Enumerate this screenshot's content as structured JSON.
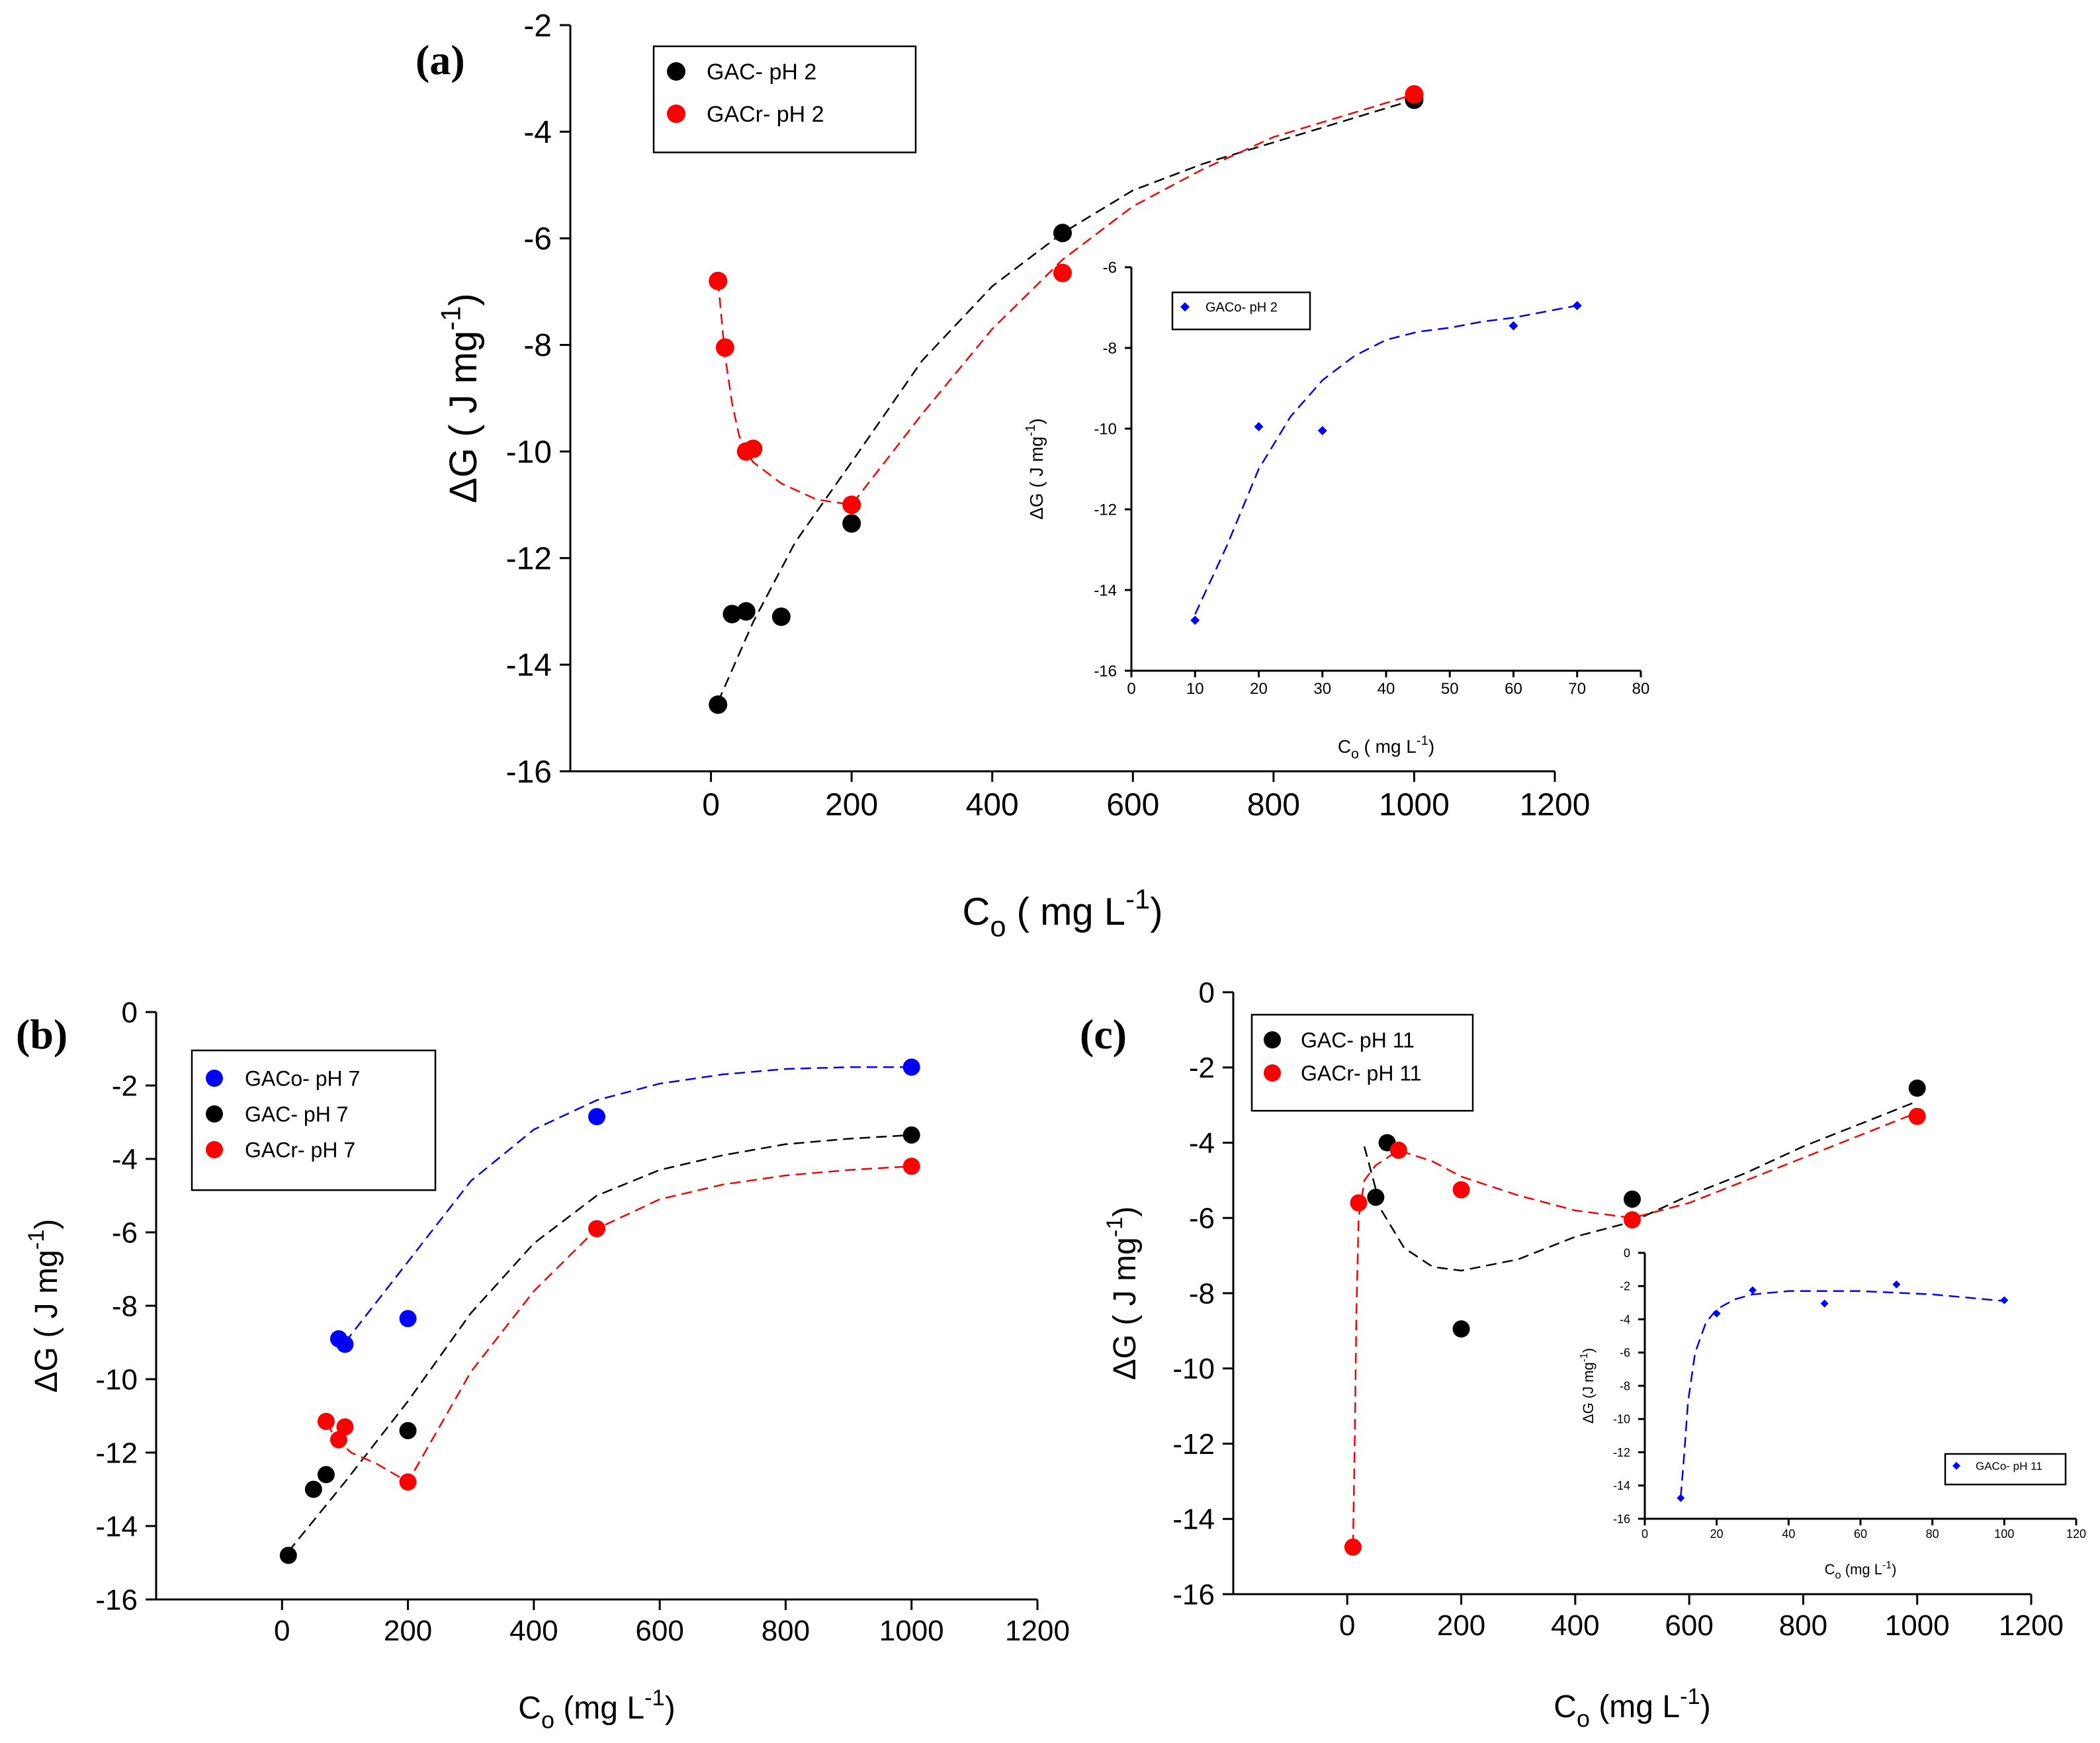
{
  "figure": {
    "colors": {
      "black": "#000000",
      "red": "#ff0000",
      "blue": "#0000ff"
    }
  },
  "chart_data": [
    {
      "id": "a",
      "panel_label": "(a)",
      "type": "scatter",
      "xlabel": "Co ( mg L-1)",
      "xlabel_parts": {
        "main": "C",
        "sub": "o",
        "units": " ( mg L",
        "sup": "-1",
        "close": ")"
      },
      "ylabel": "ΔG ( J mg-1)",
      "ylabel_parts": {
        "main": "ΔG ( J mg",
        "sup": "-1",
        "close": ")"
      },
      "xlim": [
        -200,
        1200
      ],
      "ylim": [
        -16,
        -2
      ],
      "xticks": [
        0,
        200,
        400,
        600,
        800,
        1000,
        1200
      ],
      "yticks": [
        -16,
        -14,
        -12,
        -10,
        -8,
        -6,
        -4,
        -2
      ],
      "legend_position": "top-left",
      "legend": [
        "GAC- pH 2",
        "GACr- pH 2"
      ],
      "series": [
        {
          "name": "GAC- pH 2",
          "color": "#000000",
          "marker": "circle",
          "x": [
            10,
            30,
            50,
            100,
            200,
            500,
            1000
          ],
          "y": [
            -14.75,
            -13.05,
            -13.0,
            -13.1,
            -11.35,
            -5.9,
            -3.4
          ],
          "fit_x": [
            10,
            60,
            120,
            200,
            300,
            400,
            500,
            600,
            700,
            800,
            900,
            1000
          ],
          "fit_y": [
            -14.7,
            -13.2,
            -11.7,
            -10.2,
            -8.3,
            -6.9,
            -5.9,
            -5.1,
            -4.6,
            -4.2,
            -3.8,
            -3.4
          ]
        },
        {
          "name": "GACr- pH 2",
          "color": "#ff0000",
          "marker": "circle",
          "x": [
            10,
            20,
            50,
            60,
            200,
            500,
            1000
          ],
          "y": [
            -6.8,
            -8.05,
            -10.0,
            -9.95,
            -11.0,
            -6.65,
            -3.3
          ],
          "fit_x": [
            10,
            15,
            20,
            30,
            40,
            50,
            60,
            100,
            150,
            200,
            300,
            400,
            500,
            600,
            700,
            800,
            900,
            1000
          ],
          "fit_y": [
            -6.8,
            -7.5,
            -8.2,
            -9.1,
            -9.7,
            -10.0,
            -10.2,
            -10.6,
            -10.9,
            -11.0,
            -9.3,
            -7.7,
            -6.4,
            -5.4,
            -4.7,
            -4.1,
            -3.7,
            -3.3
          ]
        }
      ]
    },
    {
      "id": "a_inset",
      "type": "scatter",
      "xlabel": "Co ( mg L-1)",
      "xlabel_parts": {
        "main": "C",
        "sub": "o",
        "units": " ( mg L",
        "sup": "-1",
        "close": ")"
      },
      "ylabel": "ΔG ( J mg-1)",
      "ylabel_parts": {
        "main": "ΔG ( J mg",
        "sup": "-1",
        "close": ")"
      },
      "xlim": [
        0,
        80
      ],
      "ylim": [
        -16,
        -6
      ],
      "xticks": [
        0,
        10,
        20,
        30,
        40,
        50,
        60,
        70,
        80
      ],
      "yticks": [
        -16,
        -14,
        -12,
        -10,
        -8,
        -6
      ],
      "legend_position": "top-left",
      "legend": [
        "GACo- pH 2"
      ],
      "series": [
        {
          "name": "GACo- pH 2",
          "color": "#0000ff",
          "marker": "diamond",
          "x": [
            10,
            20,
            30,
            60,
            70
          ],
          "y": [
            -14.75,
            -9.95,
            -10.05,
            -7.45,
            -6.95
          ],
          "fit_x": [
            10,
            15,
            20,
            25,
            30,
            35,
            40,
            45,
            50,
            55,
            60,
            65,
            70
          ],
          "fit_y": [
            -14.6,
            -12.9,
            -11.0,
            -9.7,
            -8.8,
            -8.2,
            -7.8,
            -7.6,
            -7.5,
            -7.35,
            -7.25,
            -7.1,
            -6.95
          ]
        }
      ]
    },
    {
      "id": "b",
      "panel_label": "(b)",
      "type": "scatter",
      "xlabel": "Co (mg L-1)",
      "xlabel_parts": {
        "main": "C",
        "sub": "o",
        "units": " (mg L",
        "sup": "-1",
        "close": ")"
      },
      "ylabel": "ΔG ( J mg-1)",
      "ylabel_parts": {
        "main": "ΔG ( J mg",
        "sup": "-1",
        "close": ")"
      },
      "xlim": [
        -200,
        1200
      ],
      "ylim": [
        -16,
        0
      ],
      "xticks": [
        0,
        200,
        400,
        600,
        800,
        1000,
        1200
      ],
      "yticks": [
        -16,
        -14,
        -12,
        -10,
        -8,
        -6,
        -4,
        -2,
        0
      ],
      "legend_position": "top-left",
      "legend": [
        "GACo- pH 7",
        "GAC- pH 7",
        "GACr- pH 7"
      ],
      "series": [
        {
          "name": "GACo- pH 7",
          "color": "#0000ff",
          "marker": "circle",
          "x": [
            90,
            100,
            200,
            500,
            1000
          ],
          "y": [
            -8.9,
            -9.05,
            -8.35,
            -2.85,
            -1.5
          ],
          "fit_x": [
            100,
            200,
            300,
            400,
            500,
            600,
            700,
            800,
            900,
            1000
          ],
          "fit_y": [
            -9.0,
            -6.8,
            -4.6,
            -3.2,
            -2.4,
            -1.95,
            -1.7,
            -1.55,
            -1.5,
            -1.5
          ]
        },
        {
          "name": "GAC- pH 7",
          "color": "#000000",
          "marker": "circle",
          "x": [
            10,
            50,
            70,
            200,
            1000
          ],
          "y": [
            -14.8,
            -13.0,
            -12.6,
            -11.4,
            -3.35
          ],
          "fit_x": [
            10,
            100,
            200,
            300,
            400,
            500,
            600,
            700,
            800,
            900,
            1000
          ],
          "fit_y": [
            -14.7,
            -12.8,
            -10.6,
            -8.2,
            -6.3,
            -5.0,
            -4.3,
            -3.9,
            -3.6,
            -3.45,
            -3.35
          ]
        },
        {
          "name": "GACr- pH 7",
          "color": "#ff0000",
          "marker": "circle",
          "x": [
            70,
            90,
            100,
            200,
            500,
            1000
          ],
          "y": [
            -11.15,
            -11.65,
            -11.3,
            -12.8,
            -5.9,
            -4.2
          ],
          "fit_x": [
            70,
            90,
            110,
            150,
            200,
            300,
            400,
            500,
            600,
            700,
            800,
            900,
            1000
          ],
          "fit_y": [
            -11.2,
            -11.7,
            -12.0,
            -12.3,
            -12.8,
            -9.8,
            -7.6,
            -5.9,
            -5.1,
            -4.7,
            -4.45,
            -4.3,
            -4.2
          ]
        }
      ]
    },
    {
      "id": "c",
      "panel_label": "(c)",
      "type": "scatter",
      "xlabel": "Co (mg L-1)",
      "xlabel_parts": {
        "main": "C",
        "sub": "o",
        "units": " (mg L",
        "sup": "-1",
        "close": ")"
      },
      "ylabel": "ΔG ( J mg-1)",
      "ylabel_parts": {
        "main": "ΔG ( J mg",
        "sup": "-1",
        "close": ")"
      },
      "xlim": [
        -200,
        1200
      ],
      "ylim": [
        -16,
        0
      ],
      "xticks": [
        0,
        200,
        400,
        600,
        800,
        1000,
        1200
      ],
      "yticks": [
        -16,
        -14,
        -12,
        -10,
        -8,
        -6,
        -4,
        -2,
        0
      ],
      "legend_position": "top-left",
      "legend": [
        "GAC- pH 11",
        "GACr- pH 11"
      ],
      "series": [
        {
          "name": "GAC- pH 11",
          "color": "#000000",
          "marker": "circle",
          "x": [
            50,
            70,
            200,
            500,
            1000
          ],
          "y": [
            -5.45,
            -4.0,
            -8.95,
            -5.5,
            -2.55
          ],
          "fit_x": [
            30,
            60,
            100,
            150,
            200,
            300,
            400,
            500,
            600,
            700,
            800,
            900,
            1000
          ],
          "fit_y": [
            -4.1,
            -5.8,
            -6.8,
            -7.3,
            -7.4,
            -7.1,
            -6.5,
            -6.1,
            -5.4,
            -4.8,
            -4.1,
            -3.5,
            -2.9
          ]
        },
        {
          "name": "GACr- pH 11",
          "color": "#ff0000",
          "marker": "circle",
          "x": [
            10,
            20,
            90,
            200,
            500,
            1000
          ],
          "y": [
            -14.75,
            -5.6,
            -4.2,
            -5.25,
            -6.05,
            -3.3
          ],
          "fit_x": [
            10,
            13,
            16,
            20,
            30,
            50,
            90,
            150,
            200,
            300,
            400,
            500,
            600,
            700,
            800,
            900,
            1000
          ],
          "fit_y": [
            -14.7,
            -12.0,
            -8.5,
            -6.0,
            -5.0,
            -4.6,
            -4.2,
            -4.5,
            -4.9,
            -5.4,
            -5.8,
            -6.0,
            -5.6,
            -5.0,
            -4.4,
            -3.8,
            -3.2
          ]
        }
      ]
    },
    {
      "id": "c_inset",
      "type": "scatter",
      "xlabel": "Co (mg L-1)",
      "xlabel_parts": {
        "main": "C",
        "sub": "o",
        "units": " (mg L",
        "sup": "-1",
        "close": ")"
      },
      "ylabel": "ΔG (J mg-1)",
      "ylabel_parts": {
        "main": "ΔG (J mg",
        "sup": "-1",
        "close": ")"
      },
      "xlim": [
        0,
        120
      ],
      "ylim": [
        -16,
        0
      ],
      "xticks": [
        0,
        20,
        40,
        60,
        80,
        100,
        120
      ],
      "yticks": [
        -16,
        -14,
        -12,
        -10,
        -8,
        -6,
        -4,
        -2,
        0
      ],
      "legend_position": "bottom-right",
      "legend": [
        "GACo- pH 11"
      ],
      "series": [
        {
          "name": "GACo- pH 11",
          "color": "#0000ff",
          "marker": "diamond",
          "x": [
            10,
            20,
            30,
            50,
            70,
            100
          ],
          "y": [
            -14.75,
            -3.65,
            -2.25,
            -3.05,
            -1.9,
            -2.85
          ],
          "fit_x": [
            10,
            11,
            12,
            14,
            17,
            20,
            25,
            30,
            40,
            50,
            60,
            70,
            80,
            90,
            100
          ],
          "fit_y": [
            -14.7,
            -12.0,
            -9.0,
            -6.0,
            -4.2,
            -3.4,
            -2.8,
            -2.5,
            -2.3,
            -2.3,
            -2.3,
            -2.4,
            -2.5,
            -2.7,
            -2.9
          ]
        }
      ]
    }
  ]
}
